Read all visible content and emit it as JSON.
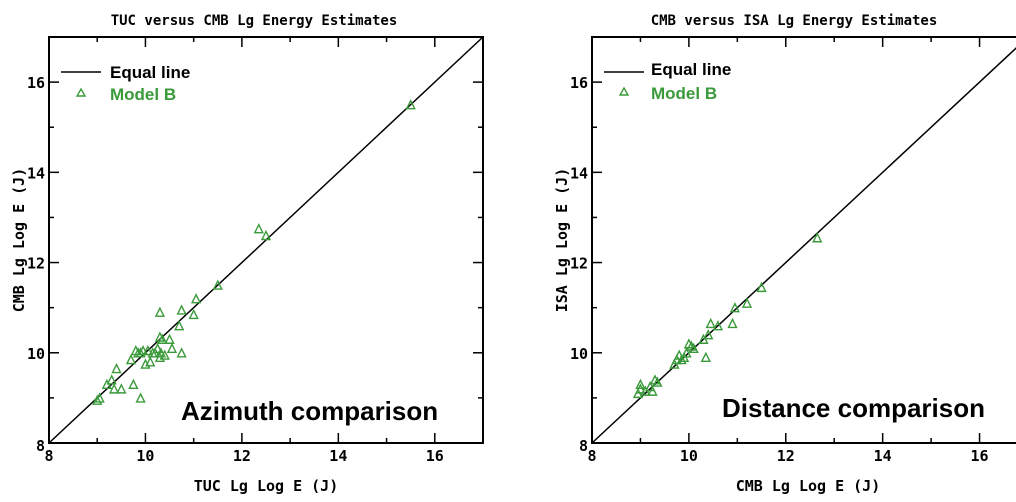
{
  "chart_data": [
    {
      "type": "scatter",
      "title": "TUC versus CMB Lg Energy Estimates",
      "xlabel": "TUC Lg Log E (J)",
      "ylabel": "CMB Lg Log E (J)",
      "xlim": [
        8,
        17
      ],
      "ylim": [
        8,
        17
      ],
      "xticks": [
        8,
        10,
        12,
        14,
        16
      ],
      "yticks": [
        8,
        10,
        12,
        14,
        16
      ],
      "grid": false,
      "legend_position": "top-left",
      "annotation": "Azimuth comparison",
      "equal_line": {
        "name": "Equal line",
        "color": "#000000"
      },
      "series": [
        {
          "name": "Model B",
          "color": "#3a9a3a",
          "marker": "triangle-open",
          "x": [
            9.0,
            9.05,
            9.2,
            9.3,
            9.35,
            9.4,
            9.5,
            9.7,
            9.75,
            9.8,
            9.85,
            9.9,
            9.9,
            9.95,
            10.0,
            10.05,
            10.1,
            10.15,
            10.2,
            10.25,
            10.3,
            10.3,
            10.3,
            10.32,
            10.35,
            10.4,
            10.5,
            10.55,
            10.7,
            10.75,
            10.75,
            11.0,
            11.05,
            11.5,
            12.35,
            12.5,
            15.5
          ],
          "y": [
            8.95,
            9.0,
            9.3,
            9.4,
            9.2,
            9.65,
            9.2,
            9.85,
            9.3,
            10.05,
            10.0,
            9.0,
            10.0,
            10.05,
            9.75,
            10.05,
            9.8,
            10.0,
            10.0,
            10.1,
            10.35,
            9.9,
            10.9,
            10.0,
            10.3,
            9.95,
            10.3,
            10.1,
            10.6,
            10.0,
            10.95,
            10.85,
            11.2,
            11.5,
            12.75,
            12.6,
            15.5
          ]
        }
      ]
    },
    {
      "type": "scatter",
      "title": "CMB versus ISA Lg Energy Estimates",
      "xlabel": "CMB Lg Log E (J)",
      "ylabel": "ISA Lg Log E (J)",
      "xlim": [
        8,
        17
      ],
      "ylim": [
        8,
        17
      ],
      "xticks": [
        8,
        10,
        12,
        14,
        16
      ],
      "yticks": [
        8,
        10,
        12,
        14,
        16
      ],
      "grid": false,
      "legend_position": "top-left",
      "annotation": "Distance comparison",
      "equal_line": {
        "name": "Equal line",
        "color": "#000000"
      },
      "series": [
        {
          "name": "Model B",
          "color": "#3a9a3a",
          "marker": "triangle-open",
          "x": [
            8.95,
            9.0,
            9.0,
            9.1,
            9.2,
            9.25,
            9.3,
            9.35,
            9.7,
            9.75,
            9.8,
            9.85,
            9.9,
            9.95,
            10.0,
            10.05,
            10.1,
            10.3,
            10.35,
            10.4,
            10.45,
            10.6,
            10.9,
            10.95,
            11.2,
            11.5,
            12.65
          ],
          "y": [
            9.1,
            9.2,
            9.3,
            9.15,
            9.25,
            9.15,
            9.4,
            9.35,
            9.75,
            9.85,
            9.95,
            9.85,
            9.9,
            10.0,
            10.2,
            10.15,
            10.1,
            10.3,
            9.9,
            10.4,
            10.65,
            10.6,
            10.65,
            11.0,
            11.1,
            11.45,
            12.55
          ]
        }
      ]
    }
  ]
}
